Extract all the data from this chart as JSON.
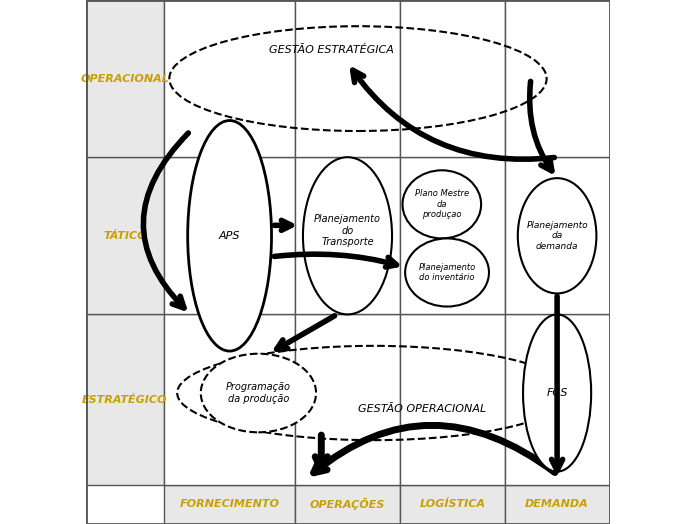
{
  "fig_width": 6.95,
  "fig_height": 5.24,
  "bg_color": "#ffffff",
  "grid_color": "#555555",
  "cell_bg": "#e8e8e8",
  "row_labels": [
    "ESTRATÉGICO",
    "TÁTICO",
    "OPERACIONAL"
  ],
  "col_labels": [
    "FORNECIMENTO",
    "OPERAÇÕES",
    "LOGÍSTICA",
    "DEMANDA"
  ],
  "row_label_color": "#c8a000",
  "col_label_color": "#c8a000",
  "label_fontsize": 8,
  "ellipse_color": "#000000",
  "arrow_color": "#000000"
}
